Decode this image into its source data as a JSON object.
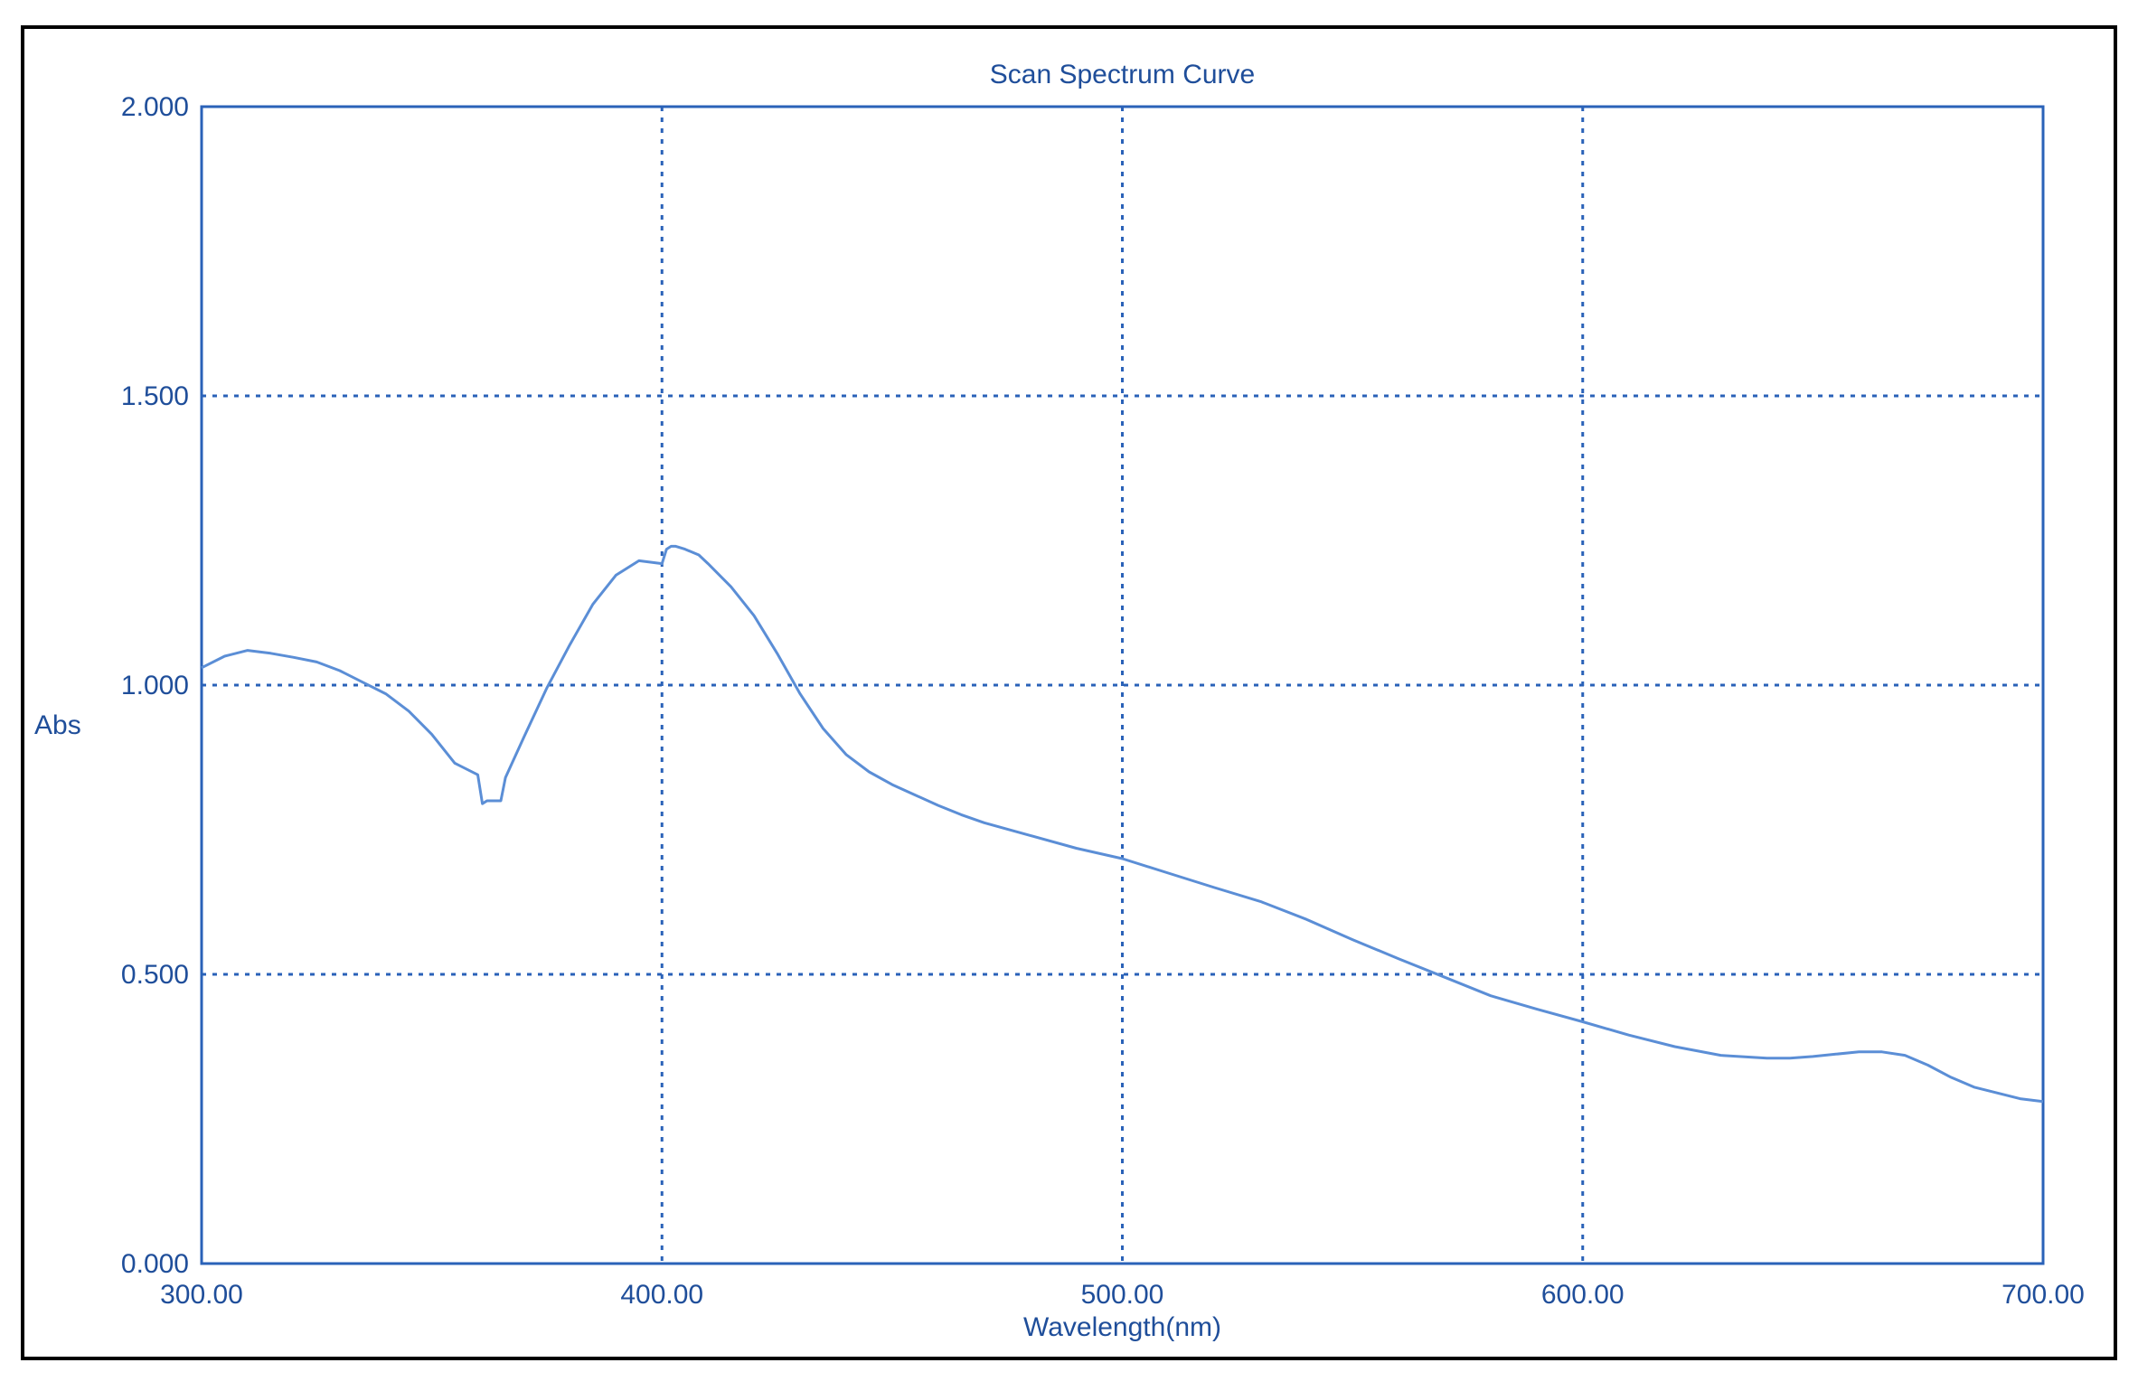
{
  "chart_data": {
    "type": "line",
    "title": "Scan Spectrum Curve",
    "xlabel": "Wavelength(nm)",
    "ylabel": "Abs",
    "xlim": [
      300,
      700
    ],
    "ylim": [
      0,
      2
    ],
    "x_ticks": [
      "300.00",
      "400.00",
      "500.00",
      "600.00",
      "700.00"
    ],
    "y_ticks": [
      "0.000",
      "0.500",
      "1.000",
      "1.500",
      "2.000"
    ],
    "grid": true,
    "grid_style": "dotted",
    "series": [
      {
        "color": "#5b8ed6",
        "x": [
          300,
          305,
          310,
          315,
          320,
          325,
          330,
          335,
          340,
          345,
          350,
          355,
          360,
          361,
          362,
          364,
          365,
          366,
          370,
          375,
          380,
          385,
          390,
          395,
          400,
          401,
          402,
          403,
          405,
          408,
          410,
          415,
          420,
          425,
          430,
          435,
          440,
          445,
          450,
          455,
          460,
          465,
          470,
          480,
          490,
          500,
          510,
          520,
          530,
          540,
          550,
          560,
          570,
          580,
          590,
          600,
          610,
          620,
          630,
          640,
          645,
          650,
          655,
          660,
          665,
          670,
          675,
          680,
          685,
          690,
          695,
          700
        ],
        "y": [
          1.03,
          1.05,
          1.06,
          1.055,
          1.048,
          1.04,
          1.025,
          1.005,
          0.985,
          0.955,
          0.915,
          0.865,
          0.845,
          0.795,
          0.8,
          0.8,
          0.8,
          0.84,
          0.91,
          0.995,
          1.07,
          1.14,
          1.19,
          1.215,
          1.21,
          1.235,
          1.24,
          1.24,
          1.235,
          1.225,
          1.21,
          1.17,
          1.12,
          1.055,
          0.985,
          0.925,
          0.88,
          0.85,
          0.828,
          0.81,
          0.792,
          0.776,
          0.762,
          0.74,
          0.718,
          0.7,
          0.675,
          0.65,
          0.626,
          0.595,
          0.56,
          0.527,
          0.495,
          0.463,
          0.44,
          0.418,
          0.395,
          0.375,
          0.36,
          0.355,
          0.355,
          0.358,
          0.362,
          0.366,
          0.366,
          0.36,
          0.343,
          0.322,
          0.305,
          0.295,
          0.285,
          0.28
        ]
      }
    ]
  }
}
